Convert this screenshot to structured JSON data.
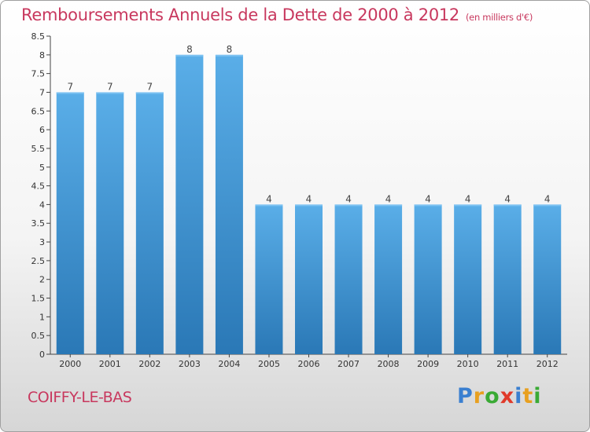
{
  "header": {
    "title": "Remboursements Annuels de la Dette de 2000 à 2012",
    "subtitle": "(en milliers d'€)"
  },
  "footer": {
    "place_name": "COIFFY-LE-BAS",
    "logo_letters": [
      "P",
      "r",
      "o",
      "x",
      "i",
      "t",
      "i"
    ],
    "logo_colors": [
      "#3a7fd0",
      "#e8a020",
      "#3aaa35",
      "#e03a2a",
      "#3a7fd0",
      "#e8a020",
      "#3aaa35"
    ]
  },
  "colors": {
    "title": "#c8385e",
    "bar_top": "#5aaee8",
    "bar_bottom": "#2a78b6",
    "axis": "#444444",
    "grid": "#cccccc"
  },
  "chart_data": {
    "type": "bar",
    "categories": [
      "2000",
      "2001",
      "2002",
      "2003",
      "2004",
      "2005",
      "2006",
      "2007",
      "2008",
      "2009",
      "2010",
      "2011",
      "2012"
    ],
    "values": [
      7,
      7,
      7,
      8,
      8,
      4,
      4,
      4,
      4,
      4,
      4,
      4,
      4
    ],
    "data_labels": [
      "7",
      "7",
      "7",
      "8",
      "8",
      "4",
      "4",
      "4",
      "4",
      "4",
      "4",
      "4",
      "4"
    ],
    "y_ticks": [
      0,
      0.5,
      1,
      1.5,
      2,
      2.5,
      3,
      3.5,
      4,
      4.5,
      5,
      5.5,
      6,
      6.5,
      7,
      7.5,
      8,
      8.5
    ],
    "y_tick_labels": [
      "0",
      "0.5",
      "1",
      "1.5",
      "2",
      "2.5",
      "3",
      "3.5",
      "4",
      "4.5",
      "5",
      "5.5",
      "6",
      "6.5",
      "7",
      "7.5",
      "8",
      "8.5"
    ],
    "ylim": [
      0,
      8.5
    ],
    "grid": false,
    "legend": "none"
  }
}
